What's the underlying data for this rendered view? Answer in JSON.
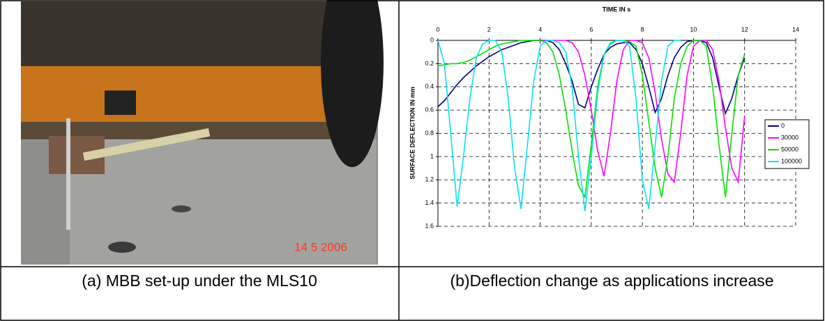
{
  "photo": {
    "date_stamp": "14 5 2006"
  },
  "chart_data": {
    "type": "line",
    "title": "TIME IN s",
    "y_label": "SURFACE DEFLECTION IN mm",
    "x": [
      0,
      0.25,
      0.5,
      0.75,
      1,
      1.25,
      1.5,
      1.75,
      2,
      2.25,
      2.5,
      2.75,
      3,
      3.25,
      3.5,
      3.75,
      4,
      4.25,
      4.5,
      4.75,
      5,
      5.25,
      5.5,
      5.75,
      6,
      6.25,
      6.5,
      6.75,
      7,
      7.25,
      7.5,
      7.75,
      8,
      8.25,
      8.5,
      8.75,
      9,
      9.25,
      9.5,
      9.75,
      10,
      10.25,
      10.5,
      10.75,
      11,
      11.25,
      11.5,
      11.75,
      12
    ],
    "series": [
      {
        "name": "0",
        "color": "#000080",
        "values": [
          0.57,
          0.52,
          0.45,
          0.38,
          0.32,
          0.27,
          0.22,
          0.18,
          0.14,
          0.11,
          0.08,
          0.06,
          0.04,
          0.02,
          0.01,
          0,
          0,
          0,
          0.02,
          0.08,
          0.2,
          0.35,
          0.55,
          0.58,
          0.4,
          0.25,
          0.12,
          0.06,
          0.03,
          0.02,
          0.02,
          0.08,
          0.2,
          0.4,
          0.62,
          0.5,
          0.3,
          0.15,
          0.06,
          0.01,
          0,
          0,
          0.02,
          0.15,
          0.4,
          0.63,
          0.5,
          0.3,
          0.15
        ]
      },
      {
        "name": "30000",
        "color": "#ff00ff",
        "values": [
          null,
          null,
          null,
          null,
          null,
          null,
          null,
          null,
          null,
          null,
          null,
          null,
          null,
          null,
          null,
          0,
          0,
          0,
          0,
          0,
          0,
          0.02,
          0.1,
          0.3,
          0.6,
          0.95,
          1.17,
          0.8,
          0.35,
          0.08,
          0,
          0,
          0.02,
          0.15,
          0.45,
          0.85,
          1.15,
          1.22,
          0.8,
          0.3,
          0.05,
          0,
          0,
          0.08,
          0.35,
          0.75,
          1.1,
          1.22,
          0.65
        ]
      },
      {
        "name": "50000",
        "color": "#00e000",
        "values": [
          0.22,
          0.21,
          0.2,
          0.2,
          0.19,
          0.17,
          0.14,
          0.11,
          0.08,
          0.05,
          0.03,
          0.02,
          0.01,
          0,
          0,
          0,
          0,
          0.02,
          0.1,
          0.3,
          0.6,
          0.95,
          1.25,
          1.35,
          0.9,
          0.4,
          0.12,
          0.03,
          0,
          0,
          0.01,
          0.05,
          0.3,
          0.7,
          1.1,
          1.35,
          1.0,
          0.5,
          0.2,
          0.05,
          0,
          0,
          0.05,
          0.4,
          0.9,
          1.35,
          0.8,
          0.3,
          0.12
        ]
      },
      {
        "name": "100000",
        "color": "#00e5ee",
        "values": [
          0,
          0.2,
          0.8,
          1.43,
          1.0,
          0.5,
          0.15,
          0.03,
          0,
          0,
          0.1,
          0.5,
          1.1,
          1.45,
          0.9,
          0.35,
          0.05,
          0,
          0,
          0.02,
          0.1,
          0.4,
          1.0,
          1.47,
          1.0,
          0.45,
          0.12,
          0.02,
          0,
          0,
          0.05,
          0.5,
          1.2,
          1.45,
          0.9,
          0.35,
          0.05,
          0,
          0,
          null,
          null,
          null,
          null,
          null,
          null,
          null,
          null,
          null,
          null
        ]
      }
    ],
    "xlim": [
      0,
      14
    ],
    "xticks": [
      0,
      2,
      4,
      6,
      8,
      10,
      12,
      14
    ],
    "ylim": [
      0,
      1.6
    ],
    "yticks": [
      0,
      0.2,
      0.4,
      0.6,
      0.8,
      1,
      1.2,
      1.4,
      1.6
    ],
    "y_inverted": true,
    "x_axis_position": "top",
    "grid": true,
    "legend": "right"
  },
  "captions": [
    "(a) MBB set-up under the MLS10",
    "(b)Deflection change as applications increase"
  ]
}
